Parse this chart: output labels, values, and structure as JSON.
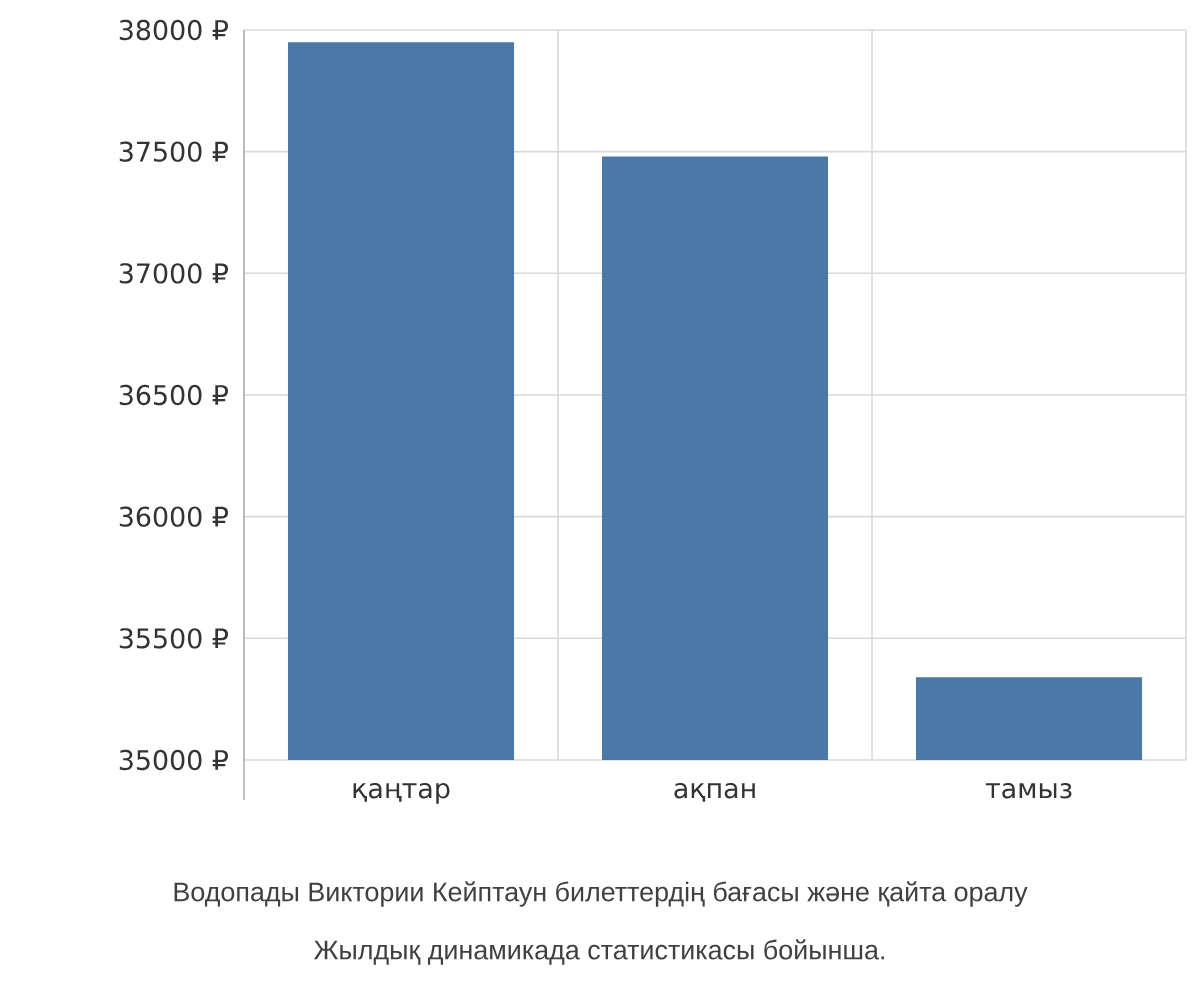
{
  "chart_data": {
    "type": "bar",
    "categories": [
      "қаңтар",
      "ақпан",
      "тамыз"
    ],
    "values": [
      37950,
      37480,
      35340
    ],
    "color": "#4c78a8",
    "ylim": [
      35000,
      38000
    ],
    "yticks": [
      {
        "value": 35000,
        "label": "35000 ₽"
      },
      {
        "value": 35500,
        "label": "35500 ₽"
      },
      {
        "value": 36000,
        "label": "36000 ₽"
      },
      {
        "value": 36500,
        "label": "36500 ₽"
      },
      {
        "value": 37000,
        "label": "37000 ₽"
      },
      {
        "value": 37500,
        "label": "37500 ₽"
      },
      {
        "value": 38000,
        "label": "38000 ₽"
      }
    ],
    "grid": true,
    "annotations": [
      "Водопады Виктории Кейптаун билеттердің бағасы және қайта оралу",
      "Жылдық динамикада статистикасы бойынша."
    ]
  }
}
